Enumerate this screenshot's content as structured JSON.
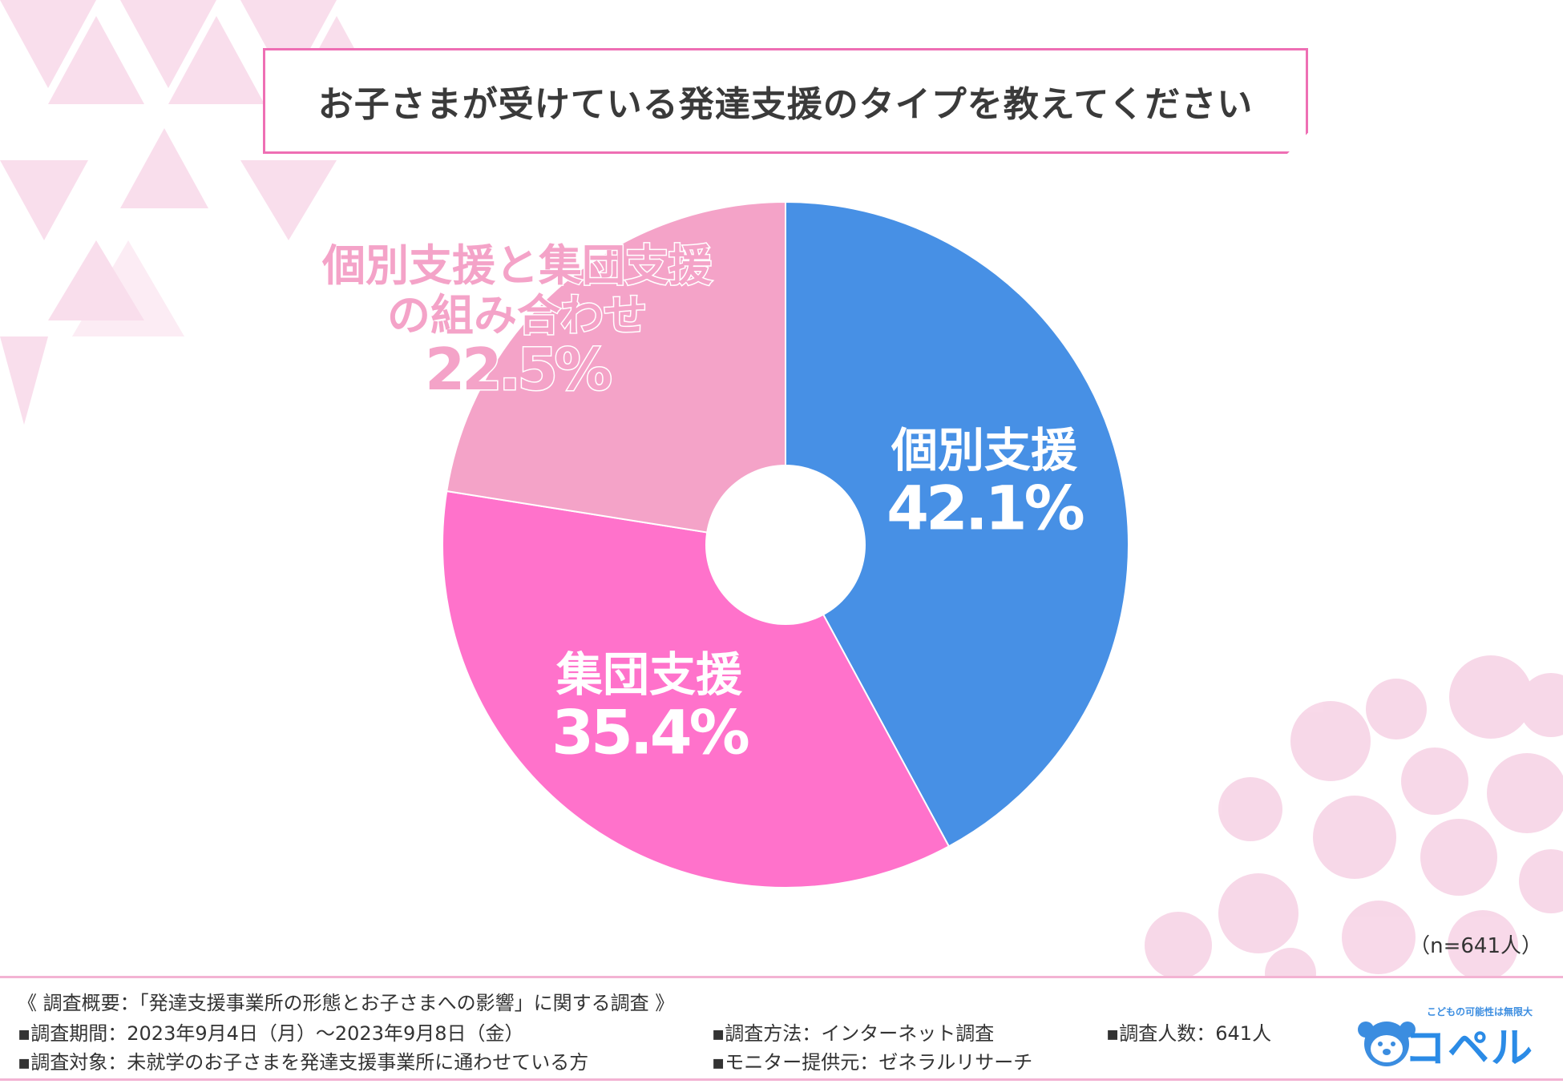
{
  "title": "お子さまが受けている発達支援のタイプを教えてください",
  "n_note": "（n=641人）",
  "chart_data": {
    "type": "pie",
    "donut": true,
    "categories": [
      "個別支援",
      "集団支援",
      "個別支援と集団支援の組み合わせ"
    ],
    "values": [
      42.1,
      35.4,
      22.5
    ],
    "unit": "%",
    "colors": [
      "#4790e5",
      "#ff72cb",
      "#f4a3c8"
    ],
    "labels": [
      {
        "lines": [
          "個別支援"
        ],
        "value": "42.1%"
      },
      {
        "lines": [
          "集団支援"
        ],
        "value": "35.4%"
      },
      {
        "lines": [
          "個別支援と集団支援",
          "の組み合わせ"
        ],
        "value": "22.5%"
      }
    ]
  },
  "footer": {
    "summary": "《 調査概要：「発達支援事業所の形態とお子さまへの影響」に関する調査 》",
    "period": "▪調査期間：2023年9月4日（月）～2023年9月8日（金）",
    "target": "▪調査対象：未就学のお子さまを発達支援事業所に通わせている方",
    "method": "▪調査方法：インターネット調査",
    "monitor": "▪モニター提供元：ゼネラルリサーチ",
    "count": "▪調査人数：641人"
  },
  "logo": {
    "tagline": "こどもの可能性は無限大",
    "name": "コペル"
  }
}
